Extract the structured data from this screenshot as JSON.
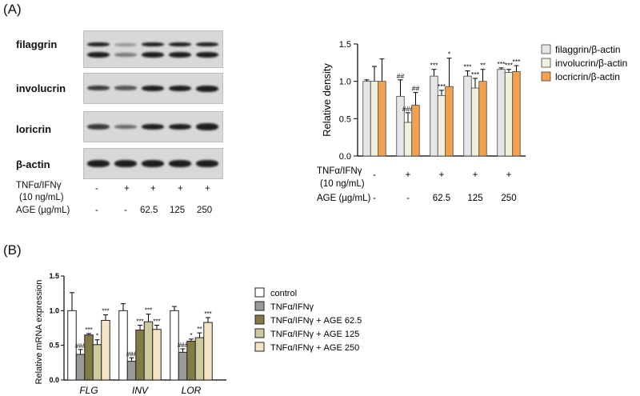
{
  "panel_a": {
    "label": "(A)",
    "blot_labels": [
      "filaggrin",
      "involucrin",
      "loricrin",
      "β-actin"
    ],
    "condition_rows": [
      {
        "label_lines": [
          "TNFα/IFNγ",
          "(10 ng/mL)"
        ],
        "values": [
          "-",
          "+",
          "+",
          "+",
          "+"
        ]
      },
      {
        "label_lines": [
          "AGE (µg/mL)"
        ],
        "values": [
          "-",
          "-",
          "62.5",
          "125",
          "250"
        ]
      }
    ]
  },
  "panel_b": {
    "label": "(B)"
  },
  "chart_data": [
    {
      "type": "bar",
      "ylabel": "Relative density",
      "ylim": [
        0,
        1.5
      ],
      "yticks": [
        0.0,
        0.5,
        1.0,
        1.5
      ],
      "groups": 5,
      "x_condition_rows": [
        {
          "label_lines": [
            "TNFα/IFNγ",
            "(10 ng/mL)"
          ],
          "values": [
            "-",
            "+",
            "+",
            "+",
            "+"
          ]
        },
        {
          "label_lines": [
            "AGE (µg/mL)"
          ],
          "values": [
            "-",
            "-",
            "62.5",
            "125",
            "250"
          ]
        }
      ],
      "legend_position": "top-right",
      "series": [
        {
          "name": "filaggrin/β-actin",
          "color": "#e6e6ea",
          "values": [
            1.0,
            0.8,
            1.07,
            1.07,
            1.16
          ],
          "errors": [
            0.02,
            0.22,
            0.09,
            0.07,
            0.02
          ],
          "annotations": [
            "",
            "##",
            "***",
            "***",
            "***"
          ]
        },
        {
          "name": "involucrin/β-actin",
          "color": "#f0f0dc",
          "values": [
            1.0,
            0.45,
            0.81,
            0.91,
            1.12
          ],
          "errors": [
            0.2,
            0.13,
            0.07,
            0.13,
            0.04
          ],
          "annotations": [
            "",
            "###",
            "***",
            "***",
            "***"
          ]
        },
        {
          "name": "locricrin/β-actin",
          "color": "#f5a04e",
          "values": [
            1.0,
            0.68,
            0.93,
            1.0,
            1.13
          ],
          "errors": [
            0.3,
            0.17,
            0.38,
            0.16,
            0.08
          ],
          "annotations": [
            "",
            "##",
            "*",
            "**",
            "***"
          ]
        }
      ]
    },
    {
      "type": "bar",
      "ylabel": "Relative mRNA expression",
      "ylim": [
        0,
        1.5
      ],
      "yticks": [
        0.0,
        0.5,
        1.0,
        1.5
      ],
      "categories": [
        "FLG",
        "INV",
        "LOR"
      ],
      "legend_position": "right",
      "series": [
        {
          "name": "control",
          "color": "#ffffff",
          "values": [
            1.0,
            1.0,
            1.0
          ],
          "errors": [
            0.26,
            0.1,
            0.06
          ],
          "annotations": [
            "",
            "",
            ""
          ]
        },
        {
          "name": "TNFα/IFNγ",
          "color": "#9a9a9a",
          "values": [
            0.37,
            0.27,
            0.4
          ],
          "errors": [
            0.07,
            0.05,
            0.05
          ],
          "annotations": [
            "###",
            "###",
            "###"
          ]
        },
        {
          "name": "TNFα/IFNγ + AGE 62.5",
          "color": "#857a45",
          "values": [
            0.65,
            0.72,
            0.56
          ],
          "errors": [
            0.02,
            0.07,
            0.03
          ],
          "annotations": [
            "***",
            "***",
            "*"
          ]
        },
        {
          "name": "TNFα/IFNγ + AGE 125",
          "color": "#cfc9a0",
          "values": [
            0.51,
            0.84,
            0.61
          ],
          "errors": [
            0.07,
            0.11,
            0.07
          ],
          "annotations": [
            "*",
            "***",
            "**"
          ]
        },
        {
          "name": "TNFα/IFNγ + AGE 250",
          "color": "#f4e4c4",
          "values": [
            0.86,
            0.73,
            0.83
          ],
          "errors": [
            0.08,
            0.06,
            0.07
          ],
          "annotations": [
            "***",
            "***",
            "***"
          ]
        }
      ]
    }
  ]
}
